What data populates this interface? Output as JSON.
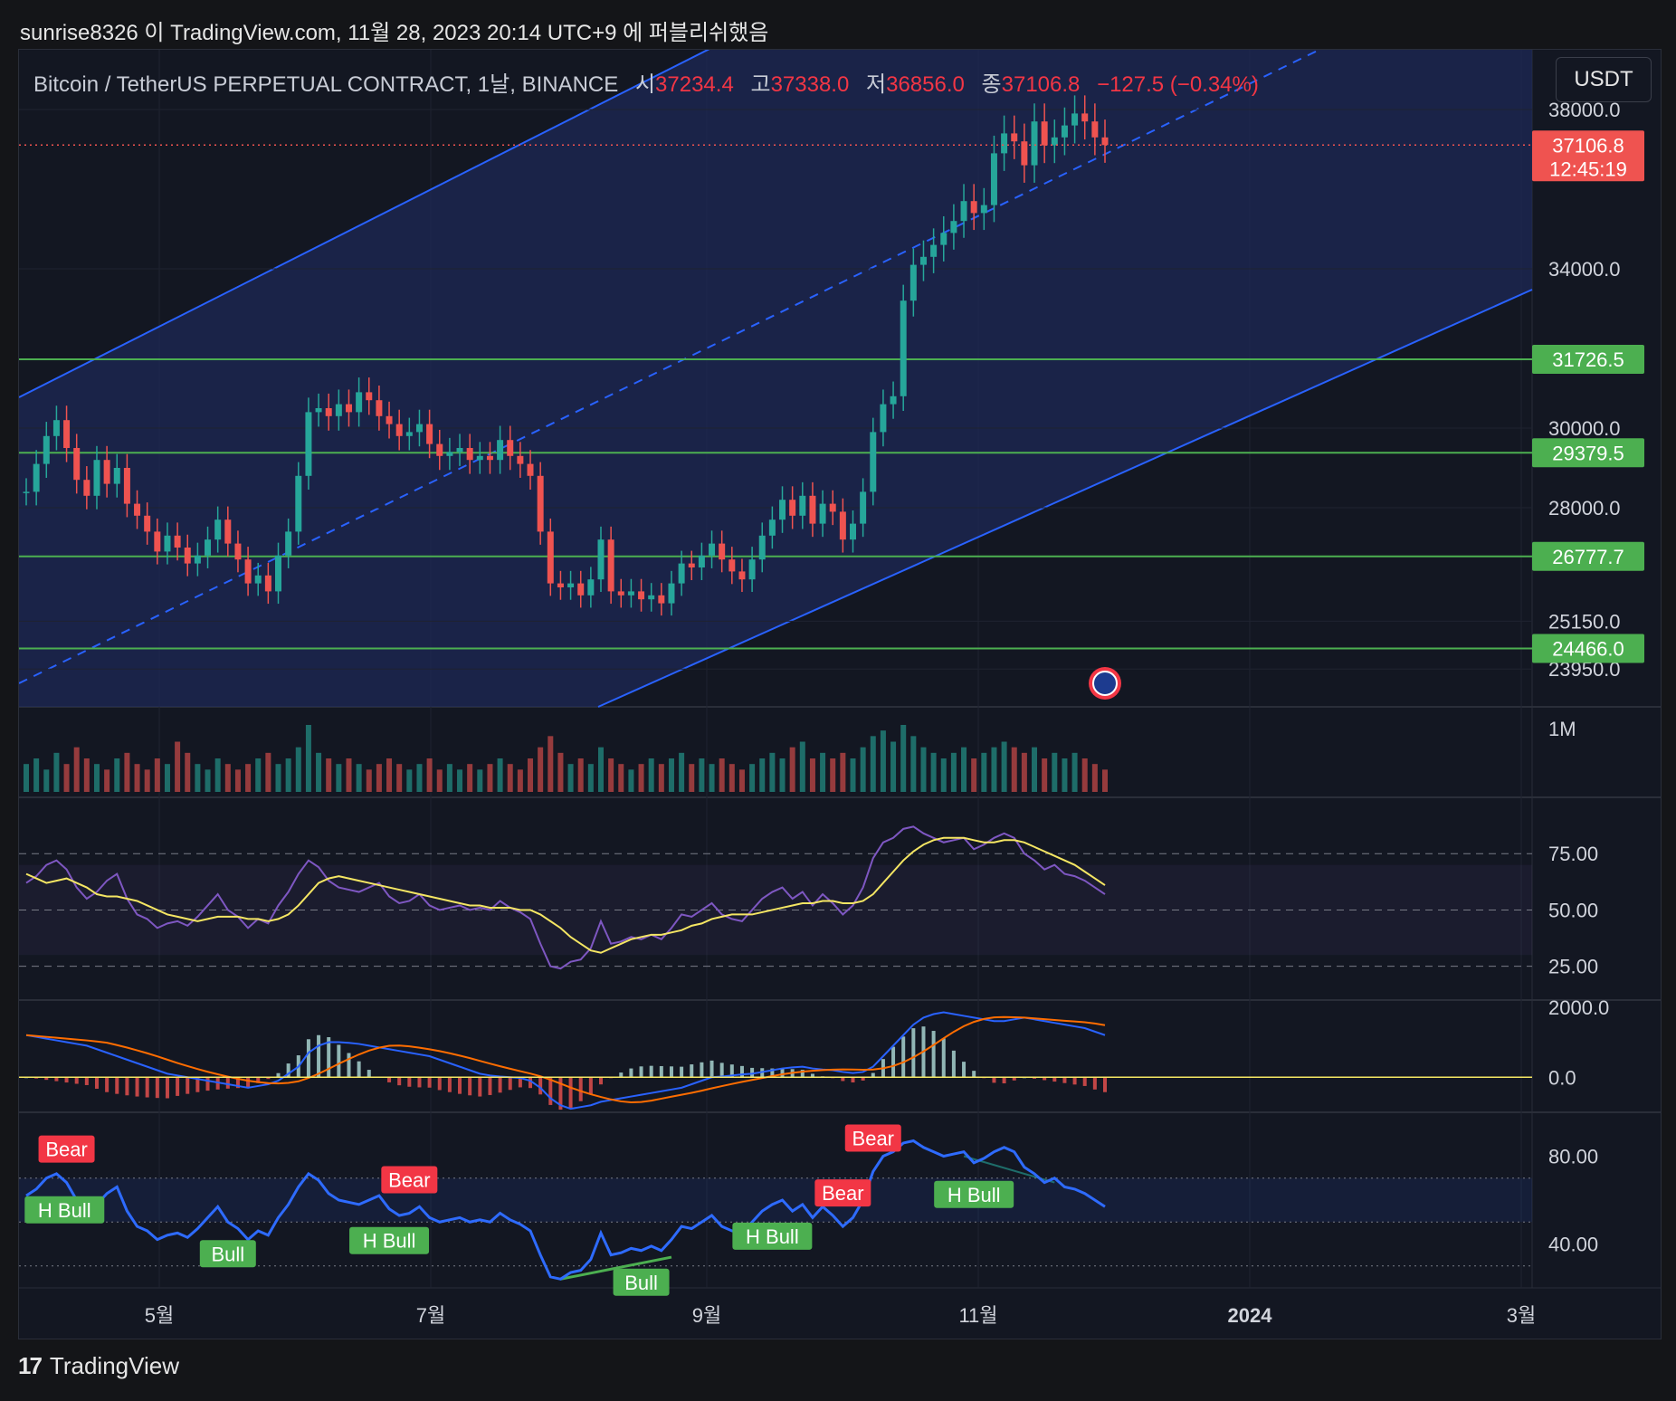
{
  "header": {
    "publish_line": "sunrise8326 이 TradingView.com, 11월 28, 2023 20:14 UTC+9 에 퍼블리쉬했음"
  },
  "legend": {
    "symbol": "Bitcoin / TetherUS PERPETUAL CONTRACT, 1날, BINANCE",
    "open_label": "시",
    "open": "37234.4",
    "high_label": "고",
    "high": "37338.0",
    "low_label": "저",
    "low": "36856.0",
    "close_label": "종",
    "close": "37106.8",
    "change": "−127.5 (−0.34%)"
  },
  "currency_button": "USDT",
  "footer": {
    "brand": "TradingView"
  },
  "colors": {
    "background": "#131722",
    "up": "#26a69a",
    "down": "#ef5350",
    "channel": "#2962ff",
    "level": "#4caf50",
    "rsi": "#7e57c2",
    "rsi_ma": "#f5e663",
    "macd": "#2962ff",
    "signal": "#ff6d00",
    "osc": "#2e6bff",
    "bear_tag": "#f23645",
    "bull_tag": "#4caf50"
  },
  "chart_data": [
    {
      "type": "candlestick",
      "x_ticks": [
        "5월",
        "7월",
        "9월",
        "11월",
        "2024",
        "3월"
      ],
      "price_ticks": [
        "38000.0",
        "34000.0",
        "30000.0",
        "28000.0",
        "25150.0",
        "23950.0"
      ],
      "ylim": [
        23000,
        39500
      ],
      "last_price": "37106.8",
      "countdown": "12:45:19",
      "horizontal_levels": [
        "31726.5",
        "29379.5",
        "26777.7",
        "24466.0"
      ],
      "close_series": [
        28400,
        29100,
        29800,
        30200,
        29500,
        28700,
        28300,
        29200,
        28600,
        29000,
        28100,
        27800,
        27400,
        26900,
        27300,
        27000,
        26600,
        26800,
        27200,
        27700,
        27100,
        26700,
        26100,
        26300,
        25900,
        26800,
        27400,
        28800,
        30400,
        30500,
        30300,
        30600,
        30400,
        30900,
        30700,
        30300,
        30100,
        29800,
        29900,
        30100,
        29600,
        29300,
        29400,
        29500,
        29200,
        29300,
        29200,
        29700,
        29300,
        29100,
        28800,
        27400,
        26100,
        26000,
        26100,
        25800,
        26200,
        27200,
        25900,
        25800,
        25900,
        25700,
        25800,
        25600,
        26100,
        26600,
        26500,
        26800,
        27100,
        26700,
        26400,
        26200,
        26700,
        27300,
        27700,
        28200,
        27800,
        28300,
        27600,
        28100,
        27900,
        27200,
        27600,
        28400,
        29900,
        30600,
        30800,
        33200,
        34100,
        34300,
        34600,
        34900,
        35200,
        35700,
        35400,
        35600,
        36900,
        37400,
        37200,
        36600,
        37700,
        37100,
        37300,
        37600,
        37900,
        37700,
        37300,
        37106.8
      ]
    },
    {
      "type": "bar",
      "name": "volume",
      "axis_label": "1M",
      "values": [
        0.5,
        0.6,
        0.4,
        0.7,
        0.5,
        0.8,
        0.6,
        0.5,
        0.4,
        0.6,
        0.7,
        0.5,
        0.4,
        0.6,
        0.5,
        0.9,
        0.7,
        0.5,
        0.4,
        0.6,
        0.5,
        0.4,
        0.5,
        0.6,
        0.7,
        0.5,
        0.6,
        0.8,
        1.2,
        0.7,
        0.6,
        0.5,
        0.6,
        0.5,
        0.4,
        0.5,
        0.6,
        0.5,
        0.4,
        0.5,
        0.6,
        0.4,
        0.5,
        0.4,
        0.5,
        0.4,
        0.5,
        0.6,
        0.5,
        0.4,
        0.6,
        0.8,
        1.0,
        0.7,
        0.5,
        0.6,
        0.5,
        0.8,
        0.6,
        0.5,
        0.4,
        0.5,
        0.6,
        0.5,
        0.6,
        0.7,
        0.5,
        0.6,
        0.5,
        0.6,
        0.5,
        0.4,
        0.5,
        0.6,
        0.7,
        0.6,
        0.8,
        0.9,
        0.6,
        0.7,
        0.6,
        0.7,
        0.6,
        0.8,
        1.0,
        1.1,
        0.9,
        1.2,
        1.0,
        0.8,
        0.7,
        0.6,
        0.7,
        0.8,
        0.6,
        0.7,
        0.8,
        0.9,
        0.8,
        0.7,
        0.8,
        0.6,
        0.7,
        0.6,
        0.7,
        0.6,
        0.5,
        0.4
      ]
    },
    {
      "type": "line",
      "name": "RSI",
      "y_ticks": [
        "75.00",
        "50.00",
        "25.00"
      ],
      "ylim": [
        10,
        100
      ],
      "rsi": [
        62,
        65,
        70,
        72,
        68,
        60,
        55,
        58,
        63,
        66,
        55,
        48,
        46,
        42,
        44,
        45,
        43,
        47,
        52,
        57,
        50,
        47,
        42,
        46,
        44,
        52,
        58,
        66,
        72,
        69,
        63,
        60,
        59,
        58,
        60,
        62,
        56,
        53,
        54,
        57,
        52,
        50,
        51,
        52,
        50,
        51,
        50,
        54,
        51,
        49,
        46,
        35,
        25,
        24,
        27,
        28,
        33,
        45,
        35,
        36,
        38,
        37,
        39,
        37,
        42,
        48,
        47,
        50,
        53,
        48,
        46,
        45,
        50,
        55,
        58,
        60,
        55,
        58,
        52,
        57,
        53,
        48,
        52,
        60,
        73,
        80,
        82,
        86,
        87,
        84,
        82,
        80,
        81,
        82,
        77,
        79,
        82,
        84,
        82,
        75,
        72,
        68,
        70,
        66,
        65,
        63,
        60,
        57
      ],
      "rsi_ma": [
        66,
        64,
        62,
        63,
        64,
        62,
        60,
        57,
        56,
        56,
        55,
        54,
        52,
        50,
        48,
        47,
        46,
        45,
        46,
        47,
        47,
        47,
        46,
        46,
        45,
        46,
        48,
        52,
        57,
        62,
        64,
        65,
        64,
        63,
        62,
        61,
        60,
        59,
        58,
        57,
        56,
        55,
        54,
        53,
        52,
        52,
        51,
        51,
        51,
        50,
        50,
        48,
        45,
        42,
        38,
        35,
        32,
        31,
        33,
        35,
        37,
        38,
        39,
        39,
        40,
        41,
        43,
        44,
        46,
        47,
        48,
        48,
        48,
        49,
        50,
        51,
        52,
        53,
        53,
        54,
        54,
        53,
        53,
        54,
        57,
        62,
        67,
        72,
        76,
        79,
        81,
        82,
        82,
        82,
        81,
        80,
        80,
        81,
        81,
        80,
        78,
        76,
        74,
        72,
        70,
        67,
        64,
        61
      ]
    },
    {
      "type": "line",
      "name": "MACD",
      "y_ticks": [
        "2000.0",
        "0.0"
      ],
      "ylim": [
        -1000,
        2200
      ],
      "macd": [
        1200,
        1150,
        1100,
        1050,
        1000,
        950,
        900,
        800,
        700,
        600,
        500,
        400,
        300,
        200,
        100,
        50,
        0,
        -50,
        -100,
        -150,
        -200,
        -250,
        -300,
        -250,
        -200,
        -100,
        100,
        300,
        700,
        900,
        1000,
        1000,
        980,
        950,
        900,
        850,
        800,
        750,
        700,
        650,
        600,
        500,
        400,
        300,
        200,
        100,
        50,
        20,
        0,
        -20,
        -100,
        -300,
        -600,
        -800,
        -900,
        -850,
        -800,
        -700,
        -650,
        -600,
        -550,
        -500,
        -450,
        -400,
        -350,
        -300,
        -200,
        -100,
        0,
        20,
        50,
        80,
        100,
        150,
        200,
        250,
        280,
        300,
        250,
        220,
        200,
        150,
        120,
        150,
        300,
        600,
        900,
        1200,
        1500,
        1700,
        1800,
        1850,
        1800,
        1750,
        1700,
        1650,
        1600,
        1600,
        1650,
        1700,
        1650,
        1600,
        1550,
        1500,
        1450,
        1400,
        1300,
        1200
      ]
    },
    {
      "type": "line",
      "name": "RSI divergence",
      "y_ticks": [
        "80.00",
        "40.00"
      ],
      "ylim": [
        20,
        100
      ],
      "values": [
        62,
        65,
        70,
        72,
        68,
        60,
        55,
        58,
        63,
        66,
        55,
        48,
        46,
        42,
        44,
        45,
        43,
        47,
        52,
        57,
        50,
        47,
        42,
        46,
        44,
        52,
        58,
        66,
        72,
        69,
        63,
        60,
        59,
        58,
        60,
        62,
        56,
        53,
        54,
        57,
        52,
        50,
        51,
        52,
        50,
        51,
        50,
        54,
        51,
        49,
        46,
        35,
        25,
        24,
        27,
        28,
        33,
        45,
        35,
        36,
        38,
        37,
        39,
        37,
        42,
        48,
        47,
        50,
        53,
        48,
        46,
        45,
        50,
        55,
        58,
        60,
        55,
        58,
        52,
        57,
        53,
        48,
        52,
        60,
        73,
        80,
        82,
        86,
        87,
        84,
        82,
        80,
        81,
        82,
        77,
        79,
        82,
        84,
        82,
        75,
        72,
        68,
        70,
        66,
        65,
        63,
        60,
        57
      ],
      "tags": [
        {
          "label": "Bear",
          "kind": "bear"
        },
        {
          "label": "H Bull",
          "kind": "bull"
        },
        {
          "label": "Bull",
          "kind": "bull"
        },
        {
          "label": "Bear",
          "kind": "bear"
        },
        {
          "label": "H Bull",
          "kind": "bull"
        },
        {
          "label": "Bull",
          "kind": "bull"
        },
        {
          "label": "H Bull",
          "kind": "bull"
        },
        {
          "label": "Bear",
          "kind": "bear"
        },
        {
          "label": "Bear",
          "kind": "bear"
        },
        {
          "label": "H Bull",
          "kind": "bull"
        }
      ]
    }
  ]
}
